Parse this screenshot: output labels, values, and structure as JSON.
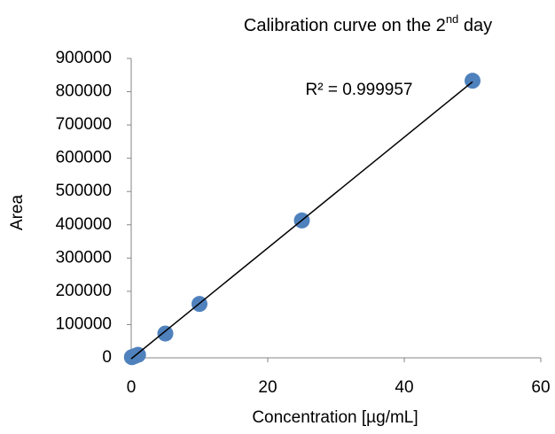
{
  "chart_data": {
    "type": "scatter",
    "title": [
      "Calibration curve on the 2",
      "nd",
      " day"
    ],
    "x_label": "Concentration [µg/mL]",
    "y_label": "Area",
    "annotation": "R² = 0.999957",
    "series": [
      {
        "name": "Area",
        "color": "#4f81bd",
        "x": [
          0.1,
          0.5,
          1,
          5,
          10,
          25,
          50
        ],
        "values": [
          2000,
          5000,
          9000,
          73000,
          162000,
          413000,
          833000
        ]
      }
    ],
    "trendline": {
      "x": [
        0,
        50
      ],
      "y": [
        -3000,
        830000
      ],
      "color": "#000000"
    },
    "xlim": [
      0,
      60
    ],
    "xticks": [
      0,
      20,
      40,
      60
    ],
    "ylim": [
      0,
      900000
    ],
    "yticks": [
      0,
      100000,
      200000,
      300000,
      400000,
      500000,
      600000,
      700000,
      800000,
      900000
    ],
    "grid": false
  }
}
